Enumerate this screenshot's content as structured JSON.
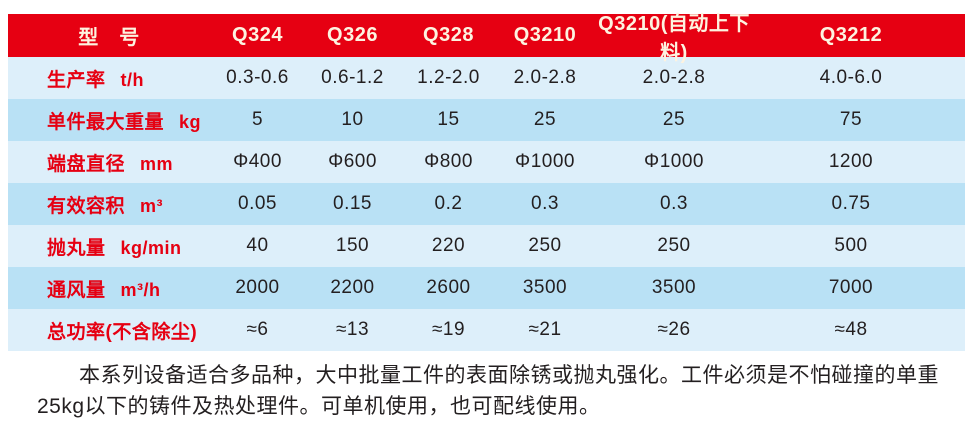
{
  "colors": {
    "header_bg": "#e60012",
    "header_text": "#fdf3e0",
    "label_red": "#e60012",
    "row_light": "#ddeffa",
    "row_medium": "#b9e1f5",
    "value_text": "#231f20",
    "page_bg": "#ffffff"
  },
  "table": {
    "header": {
      "label": "型　号",
      "models": [
        "Q324",
        "Q326",
        "Q328",
        "Q3210",
        "Q3210(自动上下料)",
        "Q3212"
      ]
    },
    "rows": [
      {
        "label": "生产率",
        "unit": "t/h",
        "values": [
          "0.3-0.6",
          "0.6-1.2",
          "1.2-2.0",
          "2.0-2.8",
          "2.0-2.8",
          "4.0-6.0"
        ]
      },
      {
        "label": "单件最大重量",
        "unit": "kg",
        "values": [
          "5",
          "10",
          "15",
          "25",
          "25",
          "75"
        ]
      },
      {
        "label": "端盘直径",
        "unit": "mm",
        "values": [
          "Φ400",
          "Φ600",
          "Φ800",
          "Φ1000",
          "Φ1000",
          "1200"
        ]
      },
      {
        "label": "有效容积",
        "unit": "m³",
        "values": [
          "0.05",
          "0.15",
          "0.2",
          "0.3",
          "0.3",
          "0.75"
        ]
      },
      {
        "label": "抛丸量",
        "unit": "kg/min",
        "values": [
          "40",
          "150",
          "220",
          "250",
          "250",
          "500"
        ]
      },
      {
        "label": "通风量",
        "unit": "m³/h",
        "values": [
          "2000",
          "2200",
          "2600",
          "3500",
          "3500",
          "7000"
        ]
      },
      {
        "label": "总功率(不含除尘)",
        "unit": "",
        "values": [
          "≈6",
          "≈13",
          "≈19",
          "≈21",
          "≈26",
          "≈48"
        ]
      }
    ]
  },
  "footer": {
    "paragraph": "本系列设备适合多品种，大中批量工件的表面除锈或抛丸强化。工件必须是不怕碰撞的单重25kg以下的铸件及热处理件。可单机使用，也可配线使用。"
  }
}
